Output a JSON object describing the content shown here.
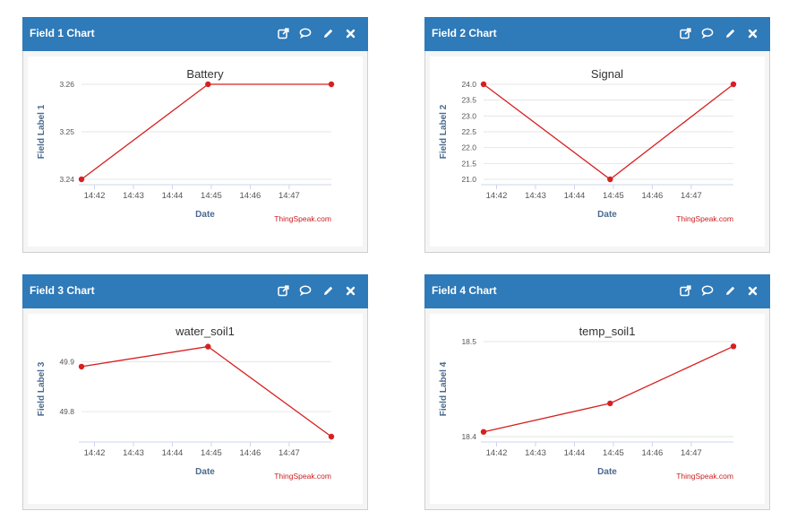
{
  "panels": [
    {
      "header": "Field 1 Chart",
      "chart_data": {
        "type": "line",
        "title": "Battery",
        "xlabel": "Date",
        "ylabel": "Field Label 1",
        "x": [
          "14:41:40",
          "14:44:55",
          "14:48:05"
        ],
        "series": [
          {
            "values": [
              3.24,
              3.26,
              3.26
            ]
          }
        ],
        "ylim": [
          3.24,
          3.26
        ],
        "yticks": [
          3.24,
          3.25,
          3.26
        ],
        "ytick_labels": [
          "3.24",
          "3.25",
          "3.26"
        ],
        "xticks": [
          "14:42",
          "14:43",
          "14:44",
          "14:45",
          "14:46",
          "14:47"
        ],
        "grid": true,
        "color": "#d62020",
        "credit": "ThingSpeak.com"
      }
    },
    {
      "header": "Field 2 Chart",
      "chart_data": {
        "type": "line",
        "title": "Signal",
        "xlabel": "Date",
        "ylabel": "Field Label 2",
        "x": [
          "14:41:40",
          "14:44:55",
          "14:48:05"
        ],
        "series": [
          {
            "values": [
              24.0,
              21.0,
              24.0
            ]
          }
        ],
        "ylim": [
          21.0,
          24.0
        ],
        "yticks": [
          21.0,
          21.5,
          22.0,
          22.5,
          23.0,
          23.5,
          24.0
        ],
        "ytick_labels": [
          "21.0",
          "21.5",
          "22.0",
          "22.5",
          "23.0",
          "23.5",
          "24.0"
        ],
        "xticks": [
          "14:42",
          "14:43",
          "14:44",
          "14:45",
          "14:46",
          "14:47"
        ],
        "grid": true,
        "color": "#d62020",
        "credit": "ThingSpeak.com"
      }
    },
    {
      "header": "Field 3 Chart",
      "chart_data": {
        "type": "line",
        "title": "water_soil1",
        "xlabel": "Date",
        "ylabel": "Field Label 3",
        "x": [
          "14:41:40",
          "14:44:55",
          "14:48:05"
        ],
        "series": [
          {
            "values": [
              49.89,
              49.93,
              49.75
            ]
          }
        ],
        "ylim": [
          49.75,
          49.94
        ],
        "yticks": [
          49.8,
          49.9
        ],
        "ytick_labels": [
          "49.8",
          "49.9"
        ],
        "xticks": [
          "14:42",
          "14:43",
          "14:44",
          "14:45",
          "14:46",
          "14:47"
        ],
        "grid": true,
        "color": "#d62020",
        "credit": "ThingSpeak.com"
      }
    },
    {
      "header": "Field 4 Chart",
      "chart_data": {
        "type": "line",
        "title": "temp_soil1",
        "xlabel": "Date",
        "ylabel": "Field Label 4",
        "x": [
          "14:41:40",
          "14:44:55",
          "14:48:05"
        ],
        "series": [
          {
            "values": [
              18.405,
              18.435,
              18.495
            ]
          }
        ],
        "ylim": [
          18.4,
          18.5
        ],
        "yticks": [
          18.4,
          18.5
        ],
        "ytick_labels": [
          "18.4",
          "18.5"
        ],
        "xticks": [
          "14:42",
          "14:43",
          "14:44",
          "14:45",
          "14:46",
          "14:47"
        ],
        "grid": true,
        "color": "#d62020",
        "credit": "ThingSpeak.com"
      }
    }
  ],
  "tools": [
    {
      "name": "open-external-icon"
    },
    {
      "name": "comment-icon"
    },
    {
      "name": "edit-pencil-icon"
    },
    {
      "name": "close-icon"
    }
  ]
}
